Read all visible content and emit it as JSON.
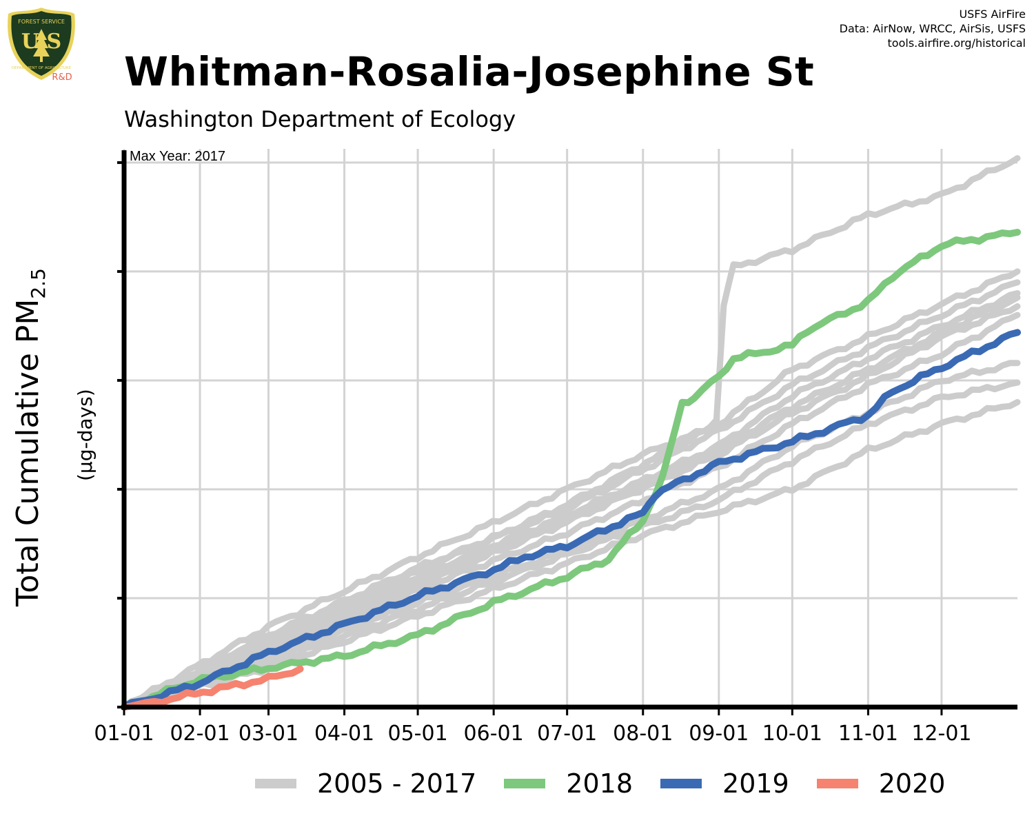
{
  "header": {
    "title": "Whitman-Rosalia-Josephine St",
    "subtitle": "Washington Department of Ecology",
    "credits": [
      "USFS AirFire",
      "Data: AirNow, WRCC, AirSis, USFS",
      "tools.airfire.org/historical"
    ],
    "logo": {
      "top_text": "FOREST SERVICE",
      "letters": "U S",
      "bottom_text": "DEPARTMENT OF AGRICULTURE",
      "tag": "R&D",
      "colors": {
        "shield": "#1d3b1e",
        "gold": "#e8d25a",
        "tag": "#e8604c"
      }
    }
  },
  "chart_data": {
    "type": "line",
    "title": "Whitman-Rosalia-Josephine St",
    "subtitle": "Washington Department of Ecology",
    "ylabel": "Total Cumulative PM",
    "ylabel_sub": "2.5",
    "ylabel_units": "(µg-days)",
    "annotation": "Max Year: 2017",
    "x_ticks": [
      "01-01",
      "02-01",
      "03-01",
      "04-01",
      "05-01",
      "06-01",
      "07-01",
      "08-01",
      "09-01",
      "10-01",
      "11-01",
      "12-01"
    ],
    "x_tick_days": [
      1,
      32,
      60,
      91,
      121,
      152,
      182,
      213,
      244,
      274,
      305,
      335
    ],
    "xlim": [
      1,
      366
    ],
    "ylim": [
      0,
      2525
    ],
    "y_gridlines": [
      0,
      500,
      1000,
      1500,
      2000,
      2500
    ],
    "y_tick_labels_shown": false,
    "grid": true,
    "legend_position": "bottom",
    "legend": [
      {
        "label": "2005 - 2017",
        "color": "#cccccc"
      },
      {
        "label": "2018",
        "color": "#7dc87d"
      },
      {
        "label": "2019",
        "color": "#3a6ab4"
      },
      {
        "label": "2020",
        "color": "#f5836f"
      }
    ],
    "series": [
      {
        "group": "2005 - 2017",
        "color": "#cccccc",
        "x": [
          1,
          60,
          121,
          182,
          213,
          238,
          243,
          246,
          250,
          274,
          305,
          335,
          366
        ],
        "y": [
          0,
          370,
          690,
          1000,
          1160,
          1270,
          1320,
          1850,
          2020,
          2100,
          2260,
          2350,
          2520
        ]
      },
      {
        "group": "2005 - 2017",
        "color": "#cccccc",
        "x": [
          1,
          60,
          121,
          182,
          244,
          274,
          305,
          335,
          366
        ],
        "y": [
          0,
          310,
          620,
          930,
          1300,
          1550,
          1700,
          1850,
          2000
        ]
      },
      {
        "group": "2005 - 2017",
        "color": "#cccccc",
        "x": [
          1,
          60,
          121,
          182,
          244,
          274,
          305,
          335,
          366
        ],
        "y": [
          0,
          330,
          640,
          910,
          1270,
          1480,
          1650,
          1800,
          1950
        ]
      },
      {
        "group": "2005 - 2017",
        "color": "#cccccc",
        "x": [
          1,
          60,
          121,
          182,
          244,
          274,
          305,
          335,
          366
        ],
        "y": [
          0,
          300,
          600,
          880,
          1200,
          1430,
          1600,
          1750,
          1900
        ]
      },
      {
        "group": "2005 - 2017",
        "color": "#cccccc",
        "x": [
          1,
          60,
          121,
          182,
          244,
          274,
          305,
          335,
          366
        ],
        "y": [
          0,
          290,
          580,
          870,
          1180,
          1380,
          1550,
          1720,
          1880
        ]
      },
      {
        "group": "2005 - 2017",
        "color": "#cccccc",
        "x": [
          1,
          60,
          121,
          182,
          244,
          274,
          305,
          335,
          366
        ],
        "y": [
          0,
          280,
          560,
          850,
          1160,
          1350,
          1520,
          1700,
          1840
        ]
      },
      {
        "group": "2005 - 2017",
        "color": "#cccccc",
        "x": [
          1,
          60,
          121,
          182,
          244,
          274,
          305,
          335,
          366
        ],
        "y": [
          0,
          260,
          540,
          800,
          1100,
          1300,
          1480,
          1620,
          1800
        ]
      },
      {
        "group": "2005 - 2017",
        "color": "#cccccc",
        "x": [
          1,
          60,
          121,
          182,
          213,
          244,
          274,
          305,
          335,
          366
        ],
        "y": [
          0,
          220,
          480,
          720,
          860,
          1000,
          1200,
          1350,
          1500,
          1580
        ]
      },
      {
        "group": "2005 - 2017",
        "color": "#cccccc",
        "x": [
          1,
          60,
          121,
          182,
          213,
          244,
          274,
          305,
          335,
          366
        ],
        "y": [
          0,
          200,
          450,
          700,
          830,
          950,
          1130,
          1300,
          1420,
          1490
        ]
      },
      {
        "group": "2005 - 2017",
        "color": "#cccccc",
        "x": [
          1,
          60,
          121,
          182,
          213,
          244,
          274,
          305,
          335,
          366
        ],
        "y": [
          0,
          180,
          420,
          660,
          790,
          900,
          1000,
          1180,
          1300,
          1400
        ]
      },
      {
        "group": "2018",
        "color": "#7dc87d",
        "x": [
          1,
          30,
          60,
          91,
          121,
          152,
          182,
          199,
          213,
          221,
          229,
          234,
          244,
          250,
          274,
          280,
          305,
          315,
          335,
          344,
          366
        ],
        "y": [
          0,
          120,
          180,
          235,
          330,
          480,
          600,
          680,
          860,
          1050,
          1400,
          1420,
          1520,
          1600,
          1660,
          1730,
          1860,
          1980,
          2120,
          2140,
          2180
        ]
      },
      {
        "group": "2019",
        "color": "#3a6ab4",
        "x": [
          1,
          32,
          60,
          91,
          121,
          152,
          165,
          182,
          213,
          218,
          244,
          274,
          290,
          305,
          315,
          335,
          366
        ],
        "y": [
          0,
          110,
          250,
          380,
          510,
          630,
          690,
          740,
          890,
          980,
          1120,
          1220,
          1280,
          1340,
          1450,
          1560,
          1720
        ]
      },
      {
        "group": "2020",
        "color": "#f5836f",
        "x": [
          1,
          10,
          20,
          30,
          40,
          50,
          60,
          73
        ],
        "y": [
          0,
          15,
          38,
          62,
          85,
          108,
          130,
          175
        ]
      }
    ]
  }
}
